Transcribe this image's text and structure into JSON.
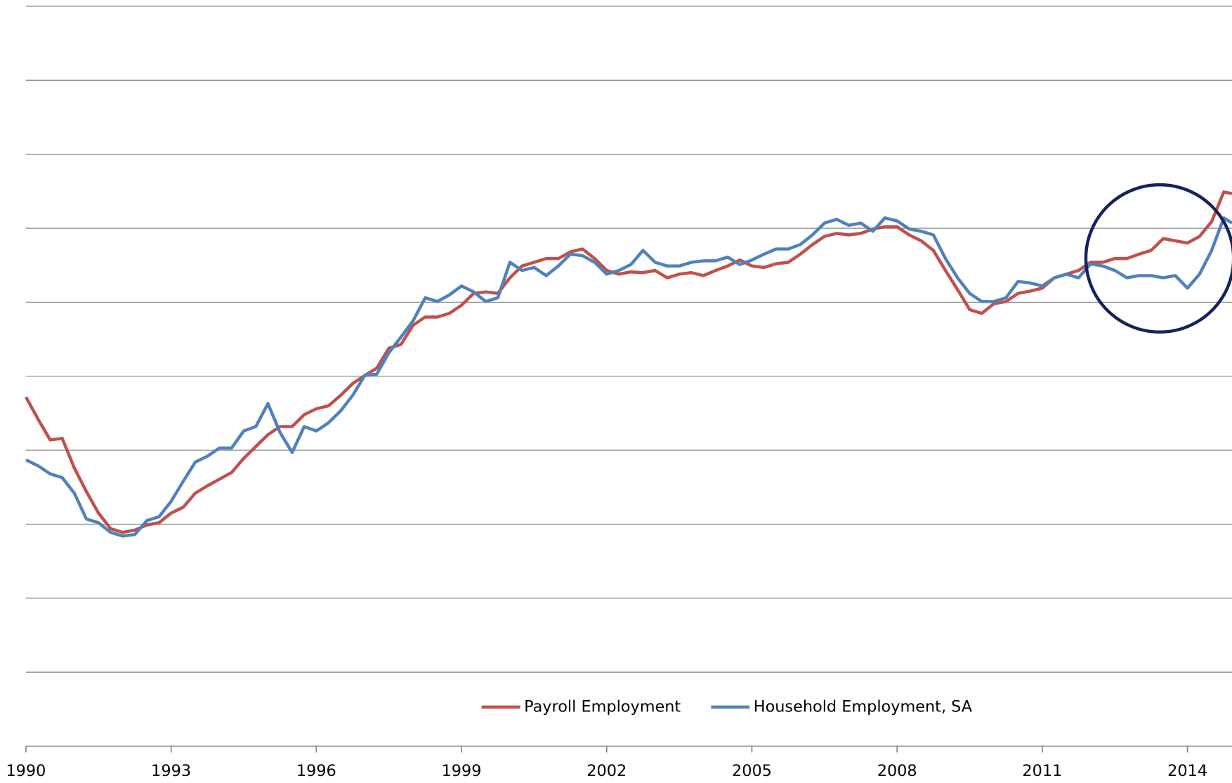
{
  "chart_data": {
    "type": "line",
    "x": [
      1990,
      1990.25,
      1990.5,
      1990.75,
      1991,
      1991.25,
      1991.5,
      1991.75,
      1992,
      1992.25,
      1992.5,
      1992.75,
      1993,
      1993.25,
      1993.5,
      1993.75,
      1994,
      1994.25,
      1994.5,
      1994.75,
      1995,
      1995.25,
      1995.5,
      1995.75,
      1996,
      1996.25,
      1996.5,
      1996.75,
      1997,
      1997.25,
      1997.5,
      1997.75,
      1998,
      1998.25,
      1998.5,
      1998.75,
      1999,
      1999.25,
      1999.5,
      1999.75,
      2000,
      2000.25,
      2000.5,
      2000.75,
      2001,
      2001.25,
      2001.5,
      2001.75,
      2002,
      2002.25,
      2002.5,
      2002.75,
      2003,
      2003.25,
      2003.5,
      2003.75,
      2004,
      2004.25,
      2004.5,
      2004.75,
      2005,
      2005.25,
      2005.5,
      2005.75,
      2006,
      2006.25,
      2006.5,
      2006.75,
      2007,
      2007.25,
      2007.5,
      2007.75,
      2008,
      2008.25,
      2008.5,
      2008.75,
      2009,
      2009.25,
      2009.5,
      2009.75,
      2010,
      2010.25,
      2010.5,
      2010.75,
      2011,
      2011.25,
      2011.5,
      2011.75,
      2012,
      2012.25,
      2012.5,
      2012.75,
      2013,
      2013.25,
      2013.5,
      2013.75,
      2014,
      2014.25,
      2014.5,
      2014.75,
      2014.92
    ],
    "series": [
      {
        "name": "Payroll Employment",
        "color": "#c0504d",
        "values": [
          4.72,
          4.42,
          4.14,
          4.16,
          3.76,
          3.44,
          3.15,
          2.94,
          2.89,
          2.92,
          2.99,
          3.02,
          3.15,
          3.23,
          3.42,
          3.52,
          3.61,
          3.7,
          3.89,
          4.05,
          4.21,
          4.32,
          4.32,
          4.48,
          4.56,
          4.6,
          4.74,
          4.9,
          5.01,
          5.11,
          5.38,
          5.43,
          5.69,
          5.8,
          5.8,
          5.85,
          5.96,
          6.12,
          6.14,
          6.12,
          6.33,
          6.49,
          6.54,
          6.59,
          6.59,
          6.68,
          6.72,
          6.59,
          6.43,
          6.38,
          6.41,
          6.4,
          6.43,
          6.33,
          6.38,
          6.4,
          6.36,
          6.43,
          6.49,
          6.57,
          6.49,
          6.47,
          6.52,
          6.54,
          6.65,
          6.78,
          6.89,
          6.93,
          6.91,
          6.93,
          6.99,
          7.02,
          7.02,
          6.91,
          6.83,
          6.7,
          6.43,
          6.17,
          5.9,
          5.85,
          5.98,
          6.01,
          6.12,
          6.15,
          6.19,
          6.33,
          6.38,
          6.43,
          6.54,
          6.54,
          6.59,
          6.59,
          6.65,
          6.7,
          6.86,
          6.83,
          6.8,
          6.89,
          7.09,
          7.49,
          7.47
        ]
      },
      {
        "name": "Household Employment, SA",
        "color": "#4f81bd",
        "values": [
          3.87,
          3.79,
          3.68,
          3.63,
          3.42,
          3.07,
          3.02,
          2.89,
          2.84,
          2.86,
          3.05,
          3.1,
          3.31,
          3.58,
          3.84,
          3.92,
          4.03,
          4.03,
          4.26,
          4.32,
          4.63,
          4.24,
          3.97,
          4.32,
          4.26,
          4.37,
          4.53,
          4.74,
          5.01,
          5.03,
          5.32,
          5.53,
          5.75,
          6.06,
          6.01,
          6.1,
          6.22,
          6.14,
          6.01,
          6.06,
          6.54,
          6.43,
          6.47,
          6.36,
          6.49,
          6.65,
          6.63,
          6.54,
          6.38,
          6.43,
          6.51,
          6.7,
          6.54,
          6.49,
          6.49,
          6.54,
          6.56,
          6.56,
          6.61,
          6.51,
          6.57,
          6.65,
          6.72,
          6.72,
          6.78,
          6.91,
          7.07,
          7.12,
          7.04,
          7.07,
          6.96,
          7.14,
          7.1,
          6.99,
          6.96,
          6.91,
          6.59,
          6.33,
          6.12,
          6.01,
          6.01,
          6.06,
          6.28,
          6.26,
          6.22,
          6.33,
          6.38,
          6.33,
          6.52,
          6.49,
          6.43,
          6.33,
          6.36,
          6.36,
          6.33,
          6.36,
          6.19,
          6.38,
          6.7,
          7.14,
          7.07
        ]
      }
    ],
    "xlim": [
      1990,
      2014.92
    ],
    "xticks": [
      1990,
      1993,
      1996,
      1999,
      2002,
      2005,
      2008,
      2011,
      2014
    ],
    "ylim": [
      0,
      10
    ],
    "yticks": [
      0,
      1,
      2,
      3,
      4,
      5,
      6,
      7,
      8,
      9,
      10
    ],
    "grid": true
  }
}
